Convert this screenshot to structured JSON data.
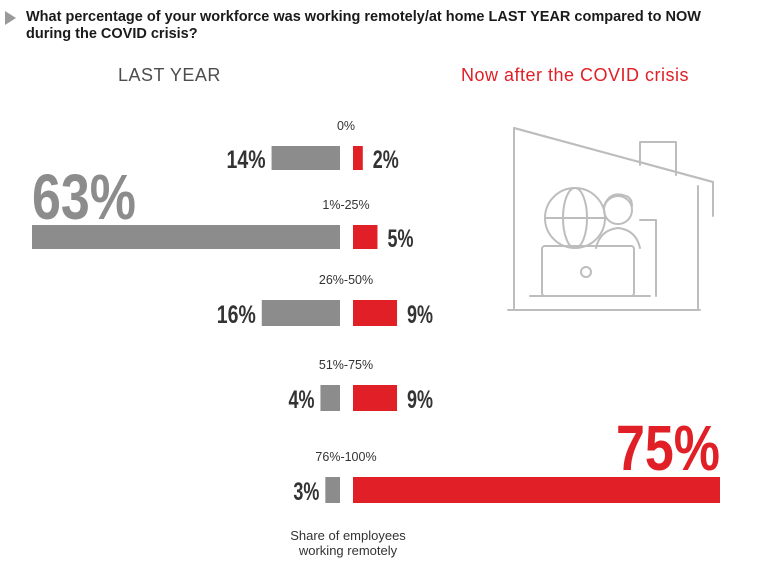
{
  "question": "What percentage of your workforce was working remotely/at home LAST YEAR compared to NOW during the COVID crisis?",
  "headers": {
    "left": "LAST YEAR",
    "right": "Now after the COVID crisis"
  },
  "footnote": {
    "line1": "Share of employees",
    "line2": "working remotely"
  },
  "colors": {
    "last_year": "#8c8c8c",
    "now": "#e01f26",
    "text_dark": "#333333"
  },
  "illustration": "person-working-remotely-at-laptop-in-house-icon",
  "chart_data": {
    "type": "bar",
    "categories": [
      "0%",
      "1%-25%",
      "26%-50%",
      "51%-75%",
      "76%-100%"
    ],
    "series": [
      {
        "name": "LAST YEAR",
        "values": [
          14,
          63,
          16,
          4,
          3
        ],
        "labels": [
          "14%",
          "63%",
          "16%",
          "4%",
          "3%"
        ]
      },
      {
        "name": "Now after the COVID crisis",
        "values": [
          2,
          5,
          9,
          9,
          75
        ],
        "labels": [
          "2%",
          "5%",
          "9%",
          "9%",
          "75%"
        ]
      }
    ],
    "xlabel": "Share of employees working remotely"
  }
}
